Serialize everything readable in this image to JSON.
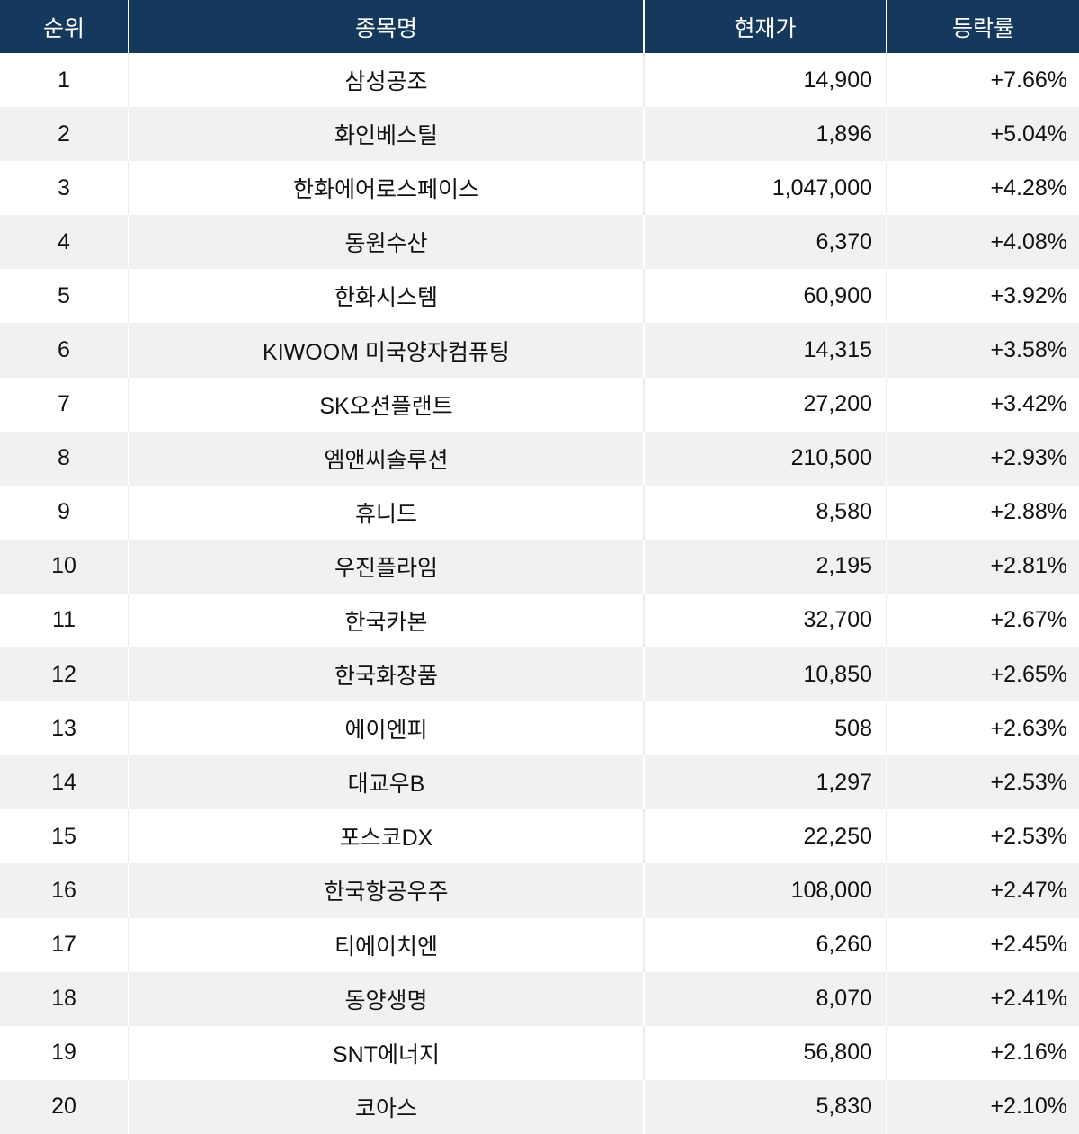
{
  "chart_data": {
    "type": "table",
    "title": "",
    "columns": [
      {
        "key": "rank",
        "label": "순위"
      },
      {
        "key": "name",
        "label": "종목명"
      },
      {
        "key": "price",
        "label": "현재가"
      },
      {
        "key": "change",
        "label": "등락률"
      }
    ],
    "rows": [
      {
        "rank": "1",
        "name": "삼성공조",
        "price": "14,900",
        "change": "+7.66%"
      },
      {
        "rank": "2",
        "name": "화인베스틸",
        "price": "1,896",
        "change": "+5.04%"
      },
      {
        "rank": "3",
        "name": "한화에어로스페이스",
        "price": "1,047,000",
        "change": "+4.28%"
      },
      {
        "rank": "4",
        "name": "동원수산",
        "price": "6,370",
        "change": "+4.08%"
      },
      {
        "rank": "5",
        "name": "한화시스템",
        "price": "60,900",
        "change": "+3.92%"
      },
      {
        "rank": "6",
        "name": "KIWOOM 미국양자컴퓨팅",
        "price": "14,315",
        "change": "+3.58%"
      },
      {
        "rank": "7",
        "name": "SK오션플랜트",
        "price": "27,200",
        "change": "+3.42%"
      },
      {
        "rank": "8",
        "name": "엠앤씨솔루션",
        "price": "210,500",
        "change": "+2.93%"
      },
      {
        "rank": "9",
        "name": "휴니드",
        "price": "8,580",
        "change": "+2.88%"
      },
      {
        "rank": "10",
        "name": "우진플라임",
        "price": "2,195",
        "change": "+2.81%"
      },
      {
        "rank": "11",
        "name": "한국카본",
        "price": "32,700",
        "change": "+2.67%"
      },
      {
        "rank": "12",
        "name": "한국화장품",
        "price": "10,850",
        "change": "+2.65%"
      },
      {
        "rank": "13",
        "name": "에이엔피",
        "price": "508",
        "change": "+2.63%"
      },
      {
        "rank": "14",
        "name": "대교우B",
        "price": "1,297",
        "change": "+2.53%"
      },
      {
        "rank": "15",
        "name": "포스코DX",
        "price": "22,250",
        "change": "+2.53%"
      },
      {
        "rank": "16",
        "name": "한국항공우주",
        "price": "108,000",
        "change": "+2.47%"
      },
      {
        "rank": "17",
        "name": "티에이치엔",
        "price": "6,260",
        "change": "+2.45%"
      },
      {
        "rank": "18",
        "name": "동양생명",
        "price": "8,070",
        "change": "+2.41%"
      },
      {
        "rank": "19",
        "name": "SNT에너지",
        "price": "56,800",
        "change": "+2.16%"
      },
      {
        "rank": "20",
        "name": "코아스",
        "price": "5,830",
        "change": "+2.10%"
      }
    ],
    "style": {
      "header_bg": "#14395c",
      "header_text": "#ffffff",
      "row_bg": "#ffffff",
      "row_alt_bg": "#f1f1f1",
      "body_text": "#111111",
      "grid_line": "#ffffff"
    }
  }
}
